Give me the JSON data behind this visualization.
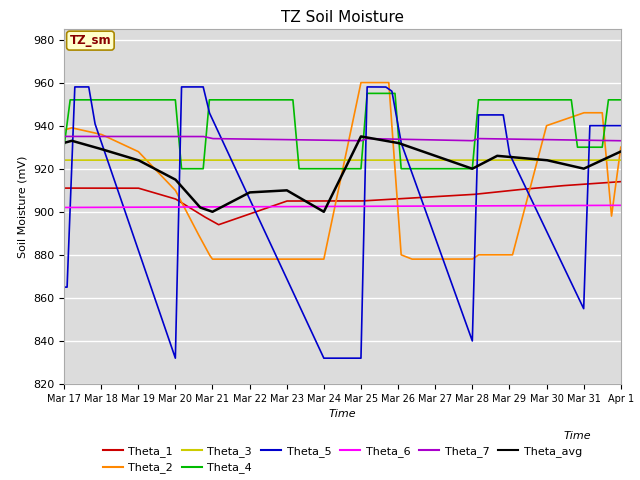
{
  "title": "TZ Soil Moisture",
  "xlabel": "Time",
  "ylabel": "Soil Moisture (mV)",
  "ylim": [
    820,
    985
  ],
  "xlim": [
    0,
    360
  ],
  "bg_color": "#dcdcdc",
  "fig_color": "#ffffff",
  "grid_color": "#ffffff",
  "x_tick_labels": [
    "Mar 17",
    "Mar 18",
    "Mar 19",
    "Mar 20",
    "Mar 21",
    "Mar 22",
    "Mar 23",
    "Mar 24",
    "Mar 25",
    "Mar 26",
    "Mar 27",
    "Mar 28",
    "Mar 29",
    "Mar 30",
    "Mar 31",
    "Apr 1"
  ],
  "x_tick_positions": [
    0,
    24,
    48,
    72,
    96,
    120,
    144,
    168,
    192,
    216,
    240,
    264,
    288,
    312,
    336,
    360
  ],
  "series": {
    "Theta_1": {
      "color": "#cc0000",
      "lw": 1.2
    },
    "Theta_2": {
      "color": "#ff8800",
      "lw": 1.2
    },
    "Theta_3": {
      "color": "#cccc00",
      "lw": 1.2
    },
    "Theta_4": {
      "color": "#00bb00",
      "lw": 1.2
    },
    "Theta_5": {
      "color": "#0000cc",
      "lw": 1.2
    },
    "Theta_6": {
      "color": "#ff00ff",
      "lw": 1.2
    },
    "Theta_7": {
      "color": "#aa00cc",
      "lw": 1.2
    },
    "Theta_avg": {
      "color": "#000000",
      "lw": 1.8
    }
  },
  "legend_row1": [
    "Theta_1",
    "Theta_2",
    "Theta_3",
    "Theta_4",
    "Theta_5",
    "Theta_6"
  ],
  "legend_row2": [
    "Theta_7",
    "Theta_avg"
  ]
}
